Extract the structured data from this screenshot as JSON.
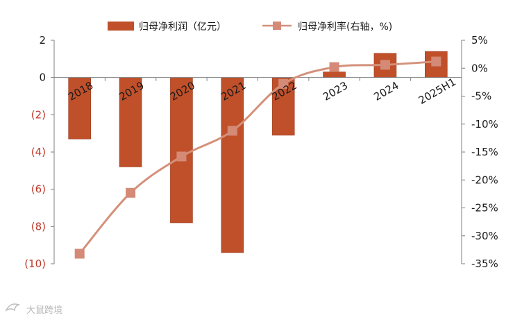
{
  "chart_data": {
    "type": "bar+line",
    "categories": [
      "2018",
      "2019",
      "2020",
      "2021",
      "2022",
      "2023",
      "2024",
      "2025H1"
    ],
    "series": [
      {
        "name": "归母净利润（亿元）",
        "type": "bar",
        "axis": "left",
        "values": [
          -3.3,
          -4.8,
          -7.8,
          -9.4,
          -3.1,
          0.3,
          1.3,
          1.4
        ]
      },
      {
        "name": "归母净利率(右轴，%)",
        "type": "line",
        "axis": "right",
        "values": [
          -33.2,
          -22.3,
          -15.8,
          -11.2,
          -2.8,
          0.2,
          0.6,
          1.2
        ]
      }
    ],
    "left_axis": {
      "range": [
        -10,
        2
      ],
      "ticks": [
        2,
        0,
        -2,
        -4,
        -6,
        -8,
        -10
      ],
      "tick_labels": [
        "2",
        "0",
        "(2)",
        "(4)",
        "(6)",
        "(8)",
        "(10)"
      ]
    },
    "right_axis": {
      "range": [
        -35,
        5
      ],
      "ticks": [
        5,
        0,
        -5,
        -10,
        -15,
        -20,
        -25,
        -30,
        -35
      ],
      "tick_labels": [
        "5%",
        "0%",
        "-5%",
        "-10%",
        "-15%",
        "-20%",
        "-25%",
        "-30%",
        "-35%"
      ]
    },
    "legend_position": "top",
    "grid": false
  },
  "colors": {
    "bar": "#c0502a",
    "line": "#d4907a",
    "marker": "#d48a76",
    "negative_tick": "#c0392b",
    "axis": "#7f7f7f"
  },
  "watermark": "大鼠跨境",
  "watermark_icon": "dolphin-logo-icon"
}
